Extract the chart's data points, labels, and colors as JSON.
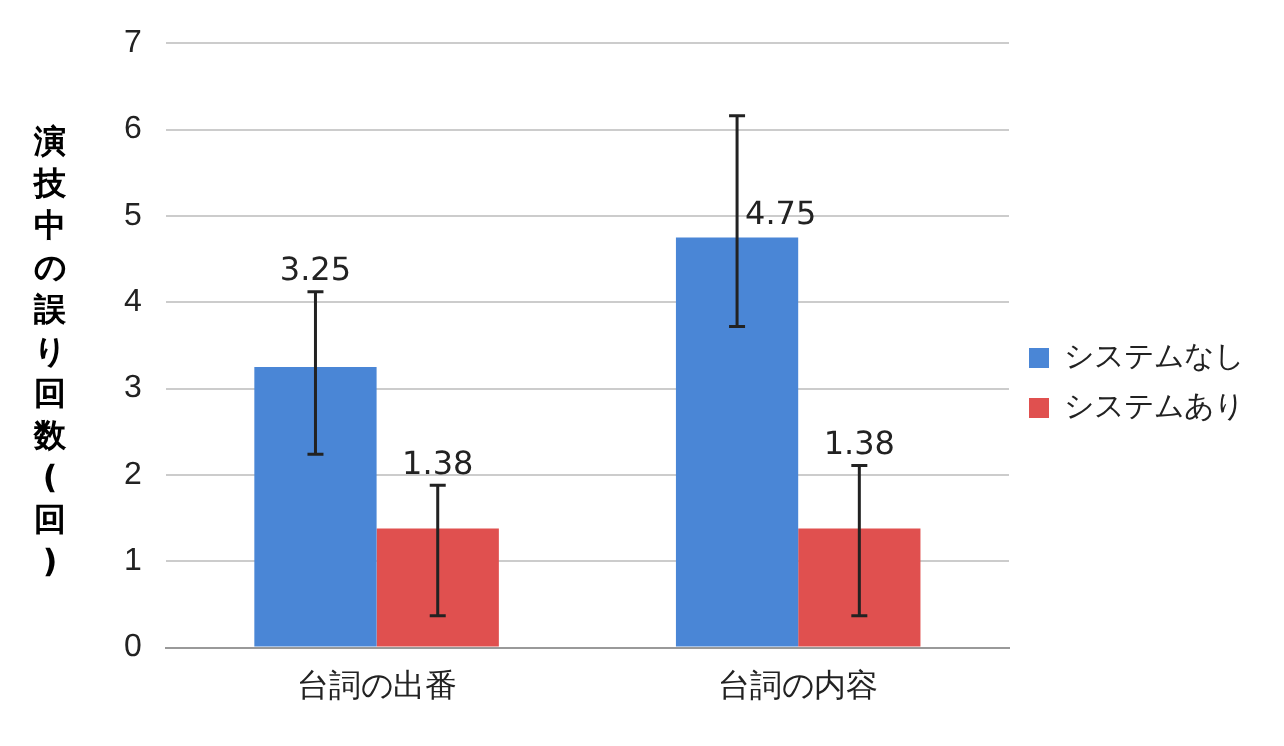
{
  "chart_data": {
    "type": "bar",
    "ylabel": "演技中の誤り回数(回)",
    "categories": [
      "台詞の出番",
      "台詞の内容"
    ],
    "series": [
      {
        "name": "システムなし",
        "color": "#4a86d6",
        "values": [
          3.25,
          4.75
        ],
        "errors": [
          [
            2.24,
            4.12
          ],
          [
            3.72,
            6.16
          ]
        ]
      },
      {
        "name": "システムあり",
        "color": "#e0504f",
        "values": [
          1.38,
          1.38
        ],
        "errors": [
          [
            0.37,
            1.88
          ],
          [
            0.37,
            2.11
          ]
        ]
      }
    ],
    "ylim": [
      0,
      7
    ],
    "yticks": [
      0,
      1,
      2,
      3,
      4,
      5,
      6,
      7
    ],
    "grid": "y",
    "legend": "right",
    "data_labels": true
  }
}
